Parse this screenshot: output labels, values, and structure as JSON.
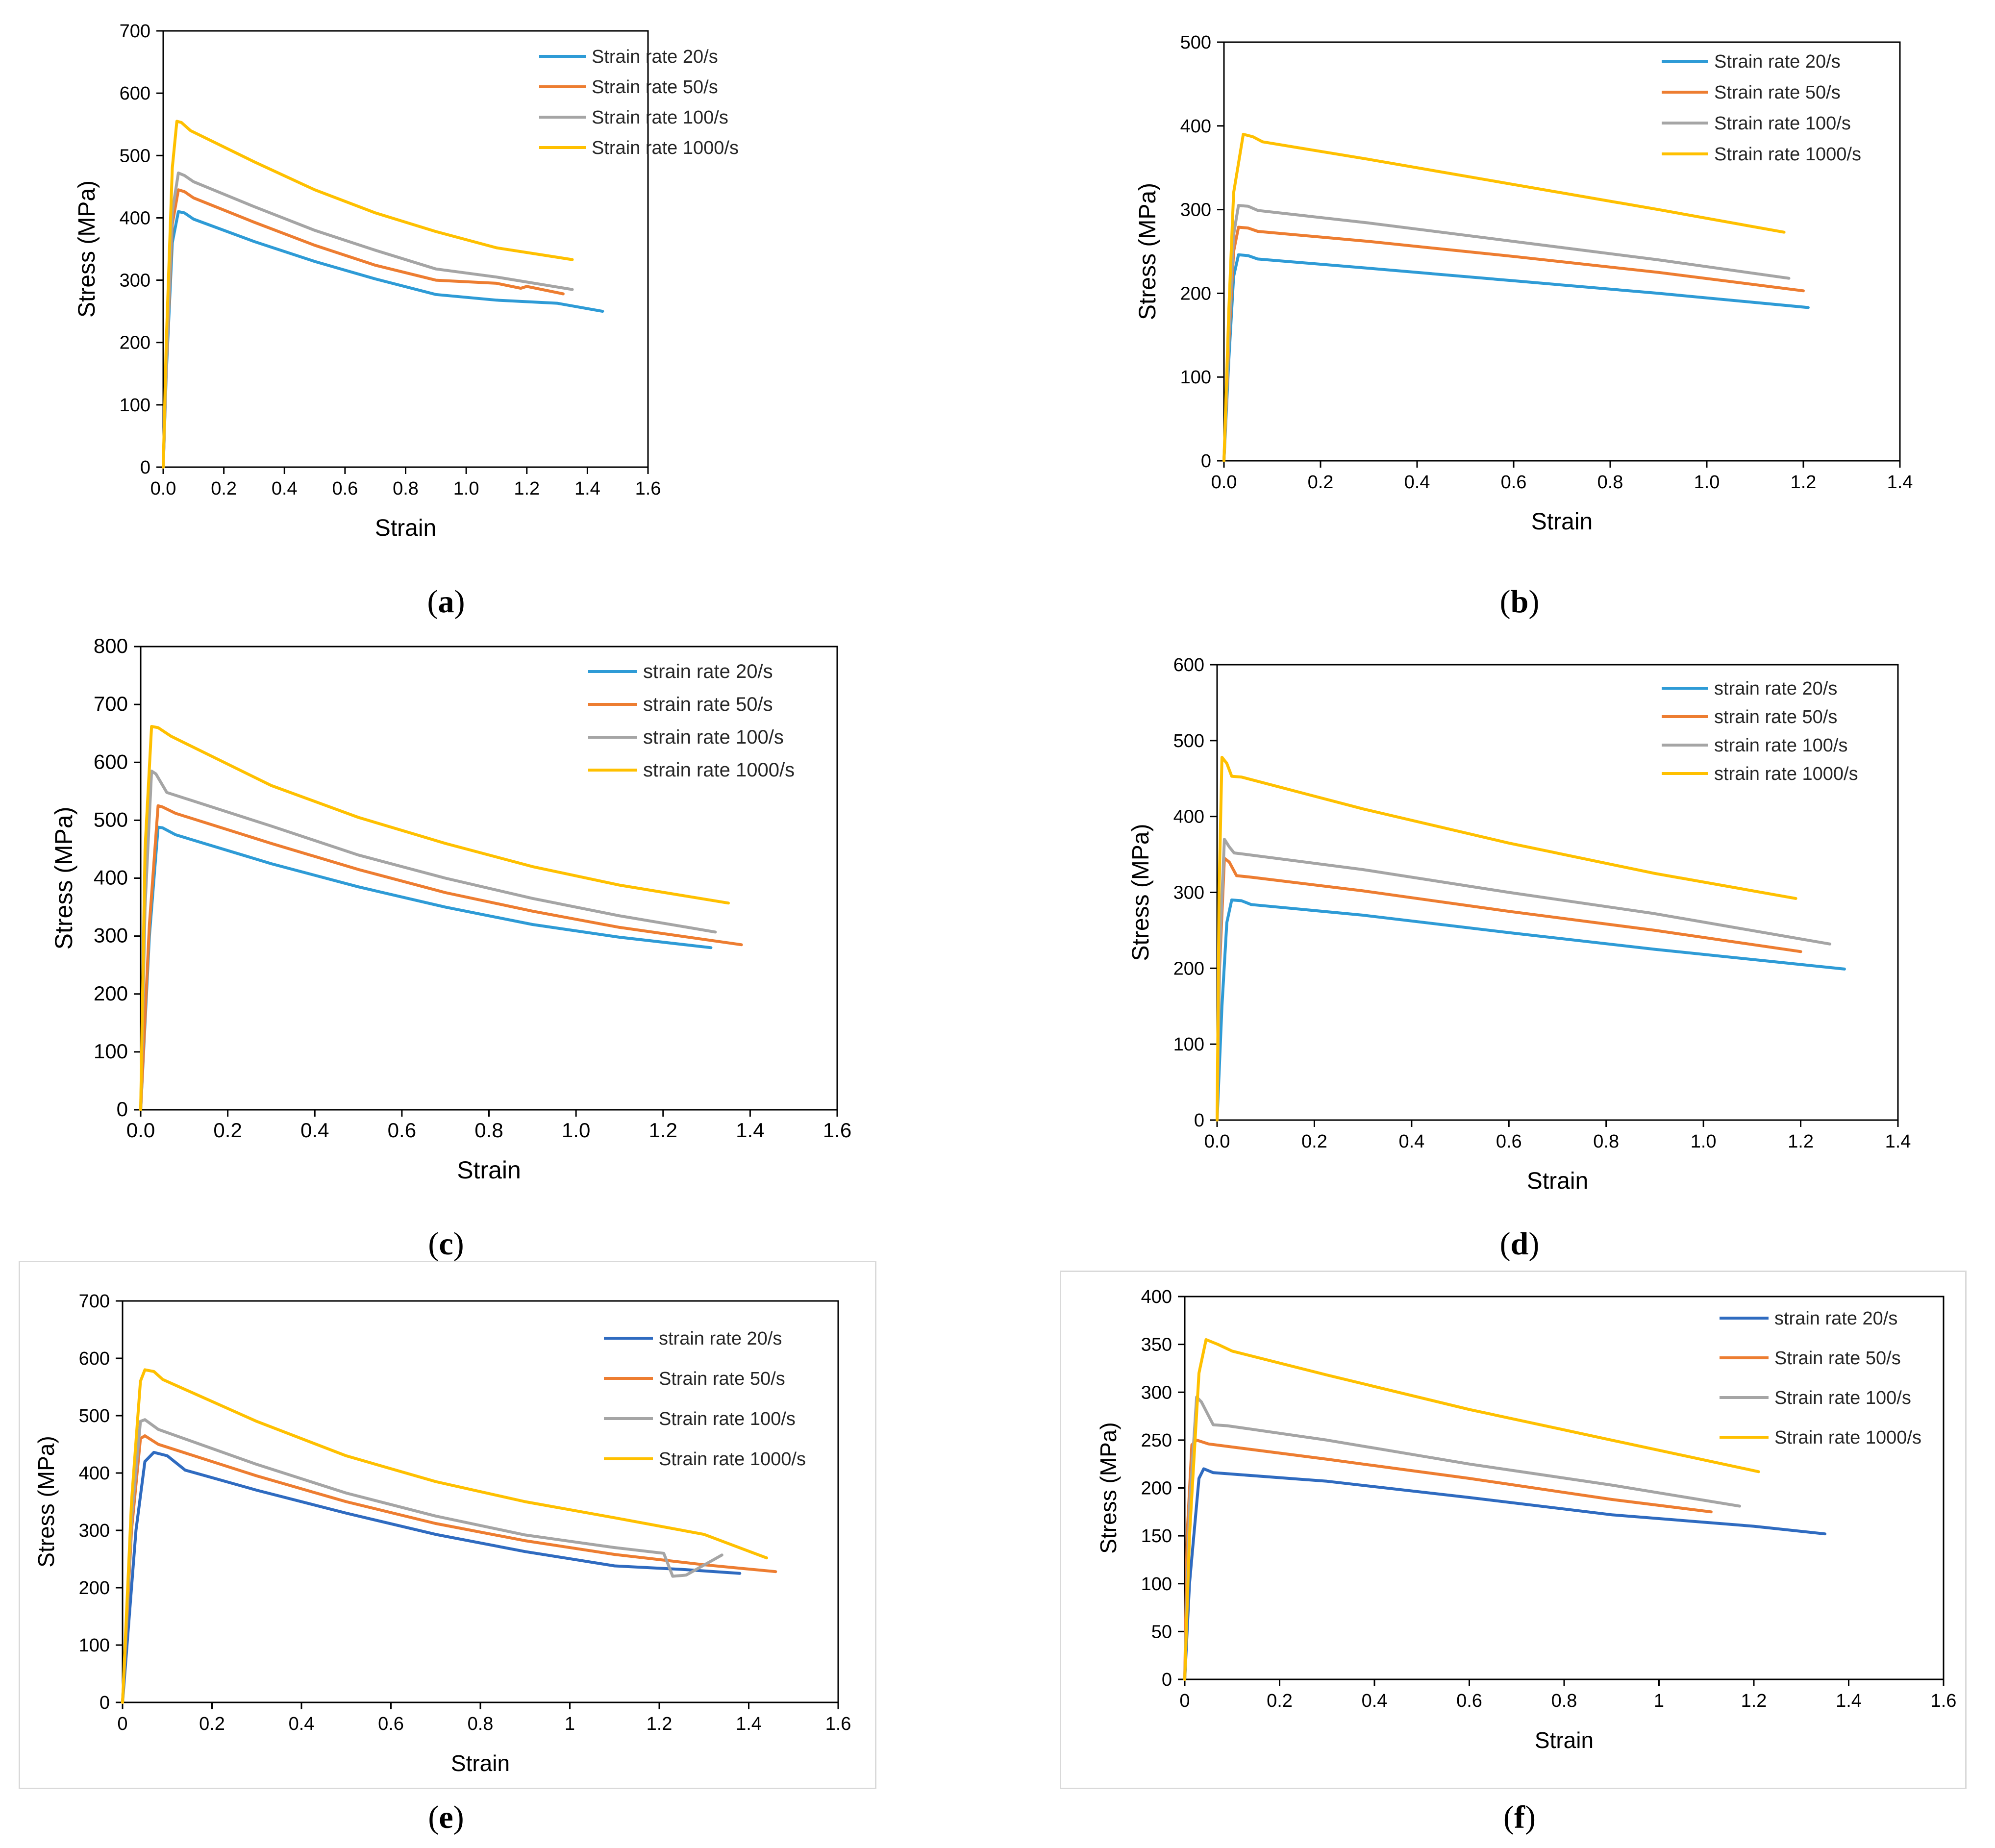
{
  "colors": {
    "blue": "#2E9BD6",
    "orange": "#ED7D31",
    "gray": "#A5A5A5",
    "yellow": "#FFC000",
    "blue_dark": "#2F6BC0"
  },
  "chart_data": [
    {
      "id": "a",
      "caption": "a",
      "type": "line",
      "xlabel": "Strain",
      "ylabel": "Stress (MPa)",
      "xlim": [
        0,
        1.6
      ],
      "ylim": [
        0,
        700
      ],
      "xticks": [
        "0.0",
        "0.2",
        "0.4",
        "0.6",
        "0.8",
        "1.0",
        "1.2",
        "1.4",
        "1.6"
      ],
      "yticks": [
        "0",
        "100",
        "200",
        "300",
        "400",
        "500",
        "600",
        "700"
      ],
      "series": [
        {
          "name": "Strain rate 20/s",
          "color": "#2E9BD6",
          "x": [
            0,
            0.01,
            0.03,
            0.05,
            0.07,
            0.1,
            0.3,
            0.5,
            0.7,
            0.9,
            1.1,
            1.3,
            1.45
          ],
          "y": [
            0,
            150,
            360,
            410,
            408,
            398,
            362,
            330,
            302,
            277,
            268,
            263,
            250
          ]
        },
        {
          "name": "Strain rate 50/s",
          "color": "#ED7D31",
          "x": [
            0,
            0.01,
            0.03,
            0.05,
            0.07,
            0.1,
            0.3,
            0.5,
            0.7,
            0.9,
            1.1,
            1.18,
            1.2,
            1.32
          ],
          "y": [
            0,
            160,
            390,
            445,
            442,
            432,
            393,
            356,
            324,
            300,
            295,
            287,
            290,
            278
          ]
        },
        {
          "name": "Strain rate 100/s",
          "color": "#A5A5A5",
          "x": [
            0,
            0.01,
            0.03,
            0.05,
            0.07,
            0.1,
            0.3,
            0.5,
            0.7,
            0.9,
            1.1,
            1.35
          ],
          "y": [
            0,
            170,
            410,
            472,
            468,
            458,
            418,
            380,
            348,
            318,
            305,
            285
          ]
        },
        {
          "name": "Strain rate 1000/s",
          "color": "#FFC000",
          "x": [
            0,
            0.01,
            0.03,
            0.045,
            0.06,
            0.09,
            0.3,
            0.5,
            0.7,
            0.9,
            1.1,
            1.35
          ],
          "y": [
            0,
            200,
            480,
            555,
            553,
            540,
            490,
            445,
            408,
            378,
            352,
            333
          ]
        }
      ],
      "legend_position": "top-right"
    },
    {
      "id": "b",
      "caption": "b",
      "type": "line",
      "xlabel": "Strain",
      "ylabel": "Stress (MPa)",
      "xlim": [
        0,
        1.4
      ],
      "ylim": [
        0,
        500
      ],
      "xticks": [
        "0.0",
        "0.2",
        "0.4",
        "0.6",
        "0.8",
        "1.0",
        "1.2",
        "1.4"
      ],
      "yticks": [
        "0",
        "100",
        "200",
        "300",
        "400",
        "500"
      ],
      "series": [
        {
          "name": "Strain rate 20/s",
          "color": "#2E9BD6",
          "x": [
            0,
            0.01,
            0.02,
            0.03,
            0.05,
            0.07,
            0.3,
            0.6,
            0.9,
            1.21
          ],
          "y": [
            0,
            120,
            220,
            246,
            245,
            241,
            230,
            215,
            200,
            183
          ]
        },
        {
          "name": "Strain rate 50/s",
          "color": "#ED7D31",
          "x": [
            0,
            0.01,
            0.02,
            0.03,
            0.05,
            0.07,
            0.3,
            0.6,
            0.9,
            1.2
          ],
          "y": [
            0,
            140,
            250,
            279,
            278,
            274,
            262,
            244,
            225,
            203
          ]
        },
        {
          "name": "Strain rate 100/s",
          "color": "#A5A5A5",
          "x": [
            0,
            0.01,
            0.02,
            0.03,
            0.05,
            0.07,
            0.3,
            0.6,
            0.9,
            1.17
          ],
          "y": [
            0,
            150,
            270,
            305,
            304,
            299,
            284,
            262,
            240,
            218
          ]
        },
        {
          "name": "Strain rate 1000/s",
          "color": "#FFC000",
          "x": [
            0,
            0.01,
            0.02,
            0.04,
            0.06,
            0.08,
            0.3,
            0.6,
            0.9,
            1.16
          ],
          "y": [
            0,
            180,
            320,
            390,
            387,
            381,
            360,
            330,
            300,
            273
          ]
        }
      ],
      "legend_position": "top-right"
    },
    {
      "id": "c",
      "caption": "c",
      "type": "line",
      "xlabel": "Strain",
      "ylabel": "Stress (MPa)",
      "xlim": [
        0,
        1.6
      ],
      "ylim": [
        0,
        800
      ],
      "xticks": [
        "0.0",
        "0.2",
        "0.4",
        "0.6",
        "0.8",
        "1.0",
        "1.2",
        "1.4",
        "1.6"
      ],
      "yticks": [
        "0",
        "100",
        "200",
        "300",
        "400",
        "500",
        "600",
        "700",
        "800"
      ],
      "series": [
        {
          "name": "strain rate 20/s",
          "color": "#2E9BD6",
          "x": [
            0,
            0.02,
            0.04,
            0.05,
            0.08,
            0.3,
            0.5,
            0.7,
            0.9,
            1.1,
            1.31
          ],
          "y": [
            0,
            300,
            488,
            487,
            475,
            425,
            385,
            350,
            320,
            298,
            280
          ]
        },
        {
          "name": "strain rate 50/s",
          "color": "#ED7D31",
          "x": [
            0,
            0.02,
            0.04,
            0.05,
            0.08,
            0.3,
            0.5,
            0.7,
            0.9,
            1.1,
            1.38
          ],
          "y": [
            0,
            320,
            525,
            523,
            512,
            460,
            415,
            375,
            343,
            315,
            285
          ]
        },
        {
          "name": "strain rate 100/s",
          "color": "#A5A5A5",
          "x": [
            0,
            0.01,
            0.025,
            0.035,
            0.06,
            0.3,
            0.5,
            0.7,
            0.9,
            1.1,
            1.32
          ],
          "y": [
            0,
            350,
            585,
            580,
            548,
            490,
            440,
            400,
            365,
            335,
            307
          ]
        },
        {
          "name": "strain rate 1000/s",
          "color": "#FFC000",
          "x": [
            0,
            0.01,
            0.025,
            0.04,
            0.07,
            0.3,
            0.5,
            0.7,
            0.9,
            1.1,
            1.35
          ],
          "y": [
            0,
            450,
            662,
            660,
            645,
            560,
            505,
            460,
            420,
            388,
            357
          ]
        }
      ],
      "legend_position": "top-right"
    },
    {
      "id": "d",
      "caption": "d",
      "type": "line",
      "xlabel": "Strain",
      "ylabel": "Stress (MPa)",
      "xlim": [
        0,
        1.4
      ],
      "ylim": [
        0,
        600
      ],
      "xticks": [
        "0.0",
        "0.2",
        "0.4",
        "0.6",
        "0.8",
        "1.0",
        "1.2",
        "1.4"
      ],
      "yticks": [
        "0",
        "100",
        "200",
        "300",
        "400",
        "500",
        "600"
      ],
      "series": [
        {
          "name": "strain rate 20/s",
          "color": "#2E9BD6",
          "x": [
            0,
            0.01,
            0.02,
            0.03,
            0.05,
            0.07,
            0.3,
            0.6,
            0.9,
            1.29
          ],
          "y": [
            0,
            150,
            260,
            290,
            289,
            284,
            270,
            247,
            225,
            199
          ]
        },
        {
          "name": "strain rate 50/s",
          "color": "#ED7D31",
          "x": [
            0,
            0.005,
            0.015,
            0.025,
            0.04,
            0.07,
            0.3,
            0.6,
            0.9,
            1.2
          ],
          "y": [
            0,
            200,
            345,
            340,
            322,
            320,
            302,
            275,
            250,
            222
          ]
        },
        {
          "name": "strain rate 100/s",
          "color": "#A5A5A5",
          "x": [
            0,
            0.005,
            0.015,
            0.025,
            0.035,
            0.06,
            0.3,
            0.6,
            0.9,
            1.26
          ],
          "y": [
            0,
            220,
            370,
            360,
            352,
            350,
            330,
            300,
            272,
            232
          ]
        },
        {
          "name": "strain rate 1000/s",
          "color": "#FFC000",
          "x": [
            0,
            0.004,
            0.01,
            0.02,
            0.03,
            0.05,
            0.3,
            0.6,
            0.9,
            1.19
          ],
          "y": [
            0,
            300,
            478,
            470,
            453,
            452,
            410,
            365,
            325,
            292
          ]
        }
      ],
      "legend_position": "top-right"
    },
    {
      "id": "e",
      "caption": "e",
      "type": "line",
      "xlabel": "Strain",
      "ylabel": "Stress (MPa)",
      "xlim": [
        0,
        1.6
      ],
      "ylim": [
        0,
        700
      ],
      "xticks": [
        "0",
        "0.2",
        "0.4",
        "0.6",
        "0.8",
        "1",
        "1.2",
        "1.4",
        "1.6"
      ],
      "yticks": [
        "0",
        "100",
        "200",
        "300",
        "400",
        "500",
        "600",
        "700"
      ],
      "series": [
        {
          "name": "strain rate 20/s",
          "color": "#2F6BC0",
          "x": [
            0,
            0.03,
            0.05,
            0.07,
            0.1,
            0.14,
            0.3,
            0.5,
            0.7,
            0.9,
            1.1,
            1.25,
            1.38
          ],
          "y": [
            0,
            300,
            420,
            436,
            430,
            405,
            370,
            330,
            293,
            263,
            238,
            232,
            225
          ]
        },
        {
          "name": "Strain rate 50/s",
          "color": "#ED7D31",
          "x": [
            0,
            0.02,
            0.04,
            0.05,
            0.08,
            0.3,
            0.5,
            0.7,
            0.9,
            1.1,
            1.3,
            1.46
          ],
          "y": [
            0,
            300,
            460,
            465,
            450,
            395,
            350,
            312,
            282,
            258,
            240,
            228
          ]
        },
        {
          "name": "Strain rate 100/s",
          "color": "#A5A5A5",
          "x": [
            0,
            0.02,
            0.04,
            0.05,
            0.08,
            0.3,
            0.5,
            0.7,
            0.9,
            1.1,
            1.21,
            1.23,
            1.26,
            1.34
          ],
          "y": [
            0,
            320,
            490,
            493,
            476,
            415,
            365,
            325,
            292,
            270,
            260,
            220,
            222,
            257
          ]
        },
        {
          "name": "Strain rate 1000/s",
          "color": "#FFC000",
          "x": [
            0,
            0.02,
            0.04,
            0.05,
            0.07,
            0.09,
            0.3,
            0.5,
            0.7,
            0.9,
            1.1,
            1.3,
            1.44
          ],
          "y": [
            0,
            350,
            560,
            580,
            577,
            563,
            490,
            430,
            385,
            350,
            322,
            293,
            252
          ]
        }
      ],
      "legend_position": "top-right"
    },
    {
      "id": "f",
      "caption": "f",
      "type": "line",
      "xlabel": "Strain",
      "ylabel": "Stress (MPa)",
      "xlim": [
        0,
        1.6
      ],
      "ylim": [
        0,
        400
      ],
      "xticks": [
        "0",
        "0.2",
        "0.4",
        "0.6",
        "0.8",
        "1",
        "1.2",
        "1.4",
        "1.6"
      ],
      "yticks": [
        "0",
        "50",
        "100",
        "150",
        "200",
        "250",
        "300",
        "350",
        "400"
      ],
      "series": [
        {
          "name": "strain rate 20/s",
          "color": "#2F6BC0",
          "x": [
            0,
            0.01,
            0.03,
            0.04,
            0.06,
            0.3,
            0.6,
            0.9,
            1.2,
            1.35
          ],
          "y": [
            0,
            100,
            210,
            220,
            216,
            207,
            190,
            172,
            160,
            152
          ]
        },
        {
          "name": "Strain rate 50/s",
          "color": "#ED7D31",
          "x": [
            0,
            0.005,
            0.015,
            0.025,
            0.05,
            0.3,
            0.6,
            0.9,
            1.11
          ],
          "y": [
            0,
            150,
            245,
            250,
            246,
            230,
            210,
            188,
            175
          ]
        },
        {
          "name": "Strain rate 100/s",
          "color": "#A5A5A5",
          "x": [
            0,
            0.01,
            0.025,
            0.035,
            0.06,
            0.09,
            0.3,
            0.6,
            0.9,
            1.17
          ],
          "y": [
            0,
            180,
            295,
            290,
            266,
            265,
            250,
            225,
            203,
            181
          ]
        },
        {
          "name": "Strain rate 1000/s",
          "color": "#FFC000",
          "x": [
            0,
            0.01,
            0.03,
            0.045,
            0.07,
            0.1,
            0.3,
            0.6,
            0.9,
            1.21
          ],
          "y": [
            0,
            150,
            320,
            355,
            350,
            343,
            318,
            282,
            250,
            217
          ]
        }
      ],
      "legend_position": "top-right"
    }
  ]
}
